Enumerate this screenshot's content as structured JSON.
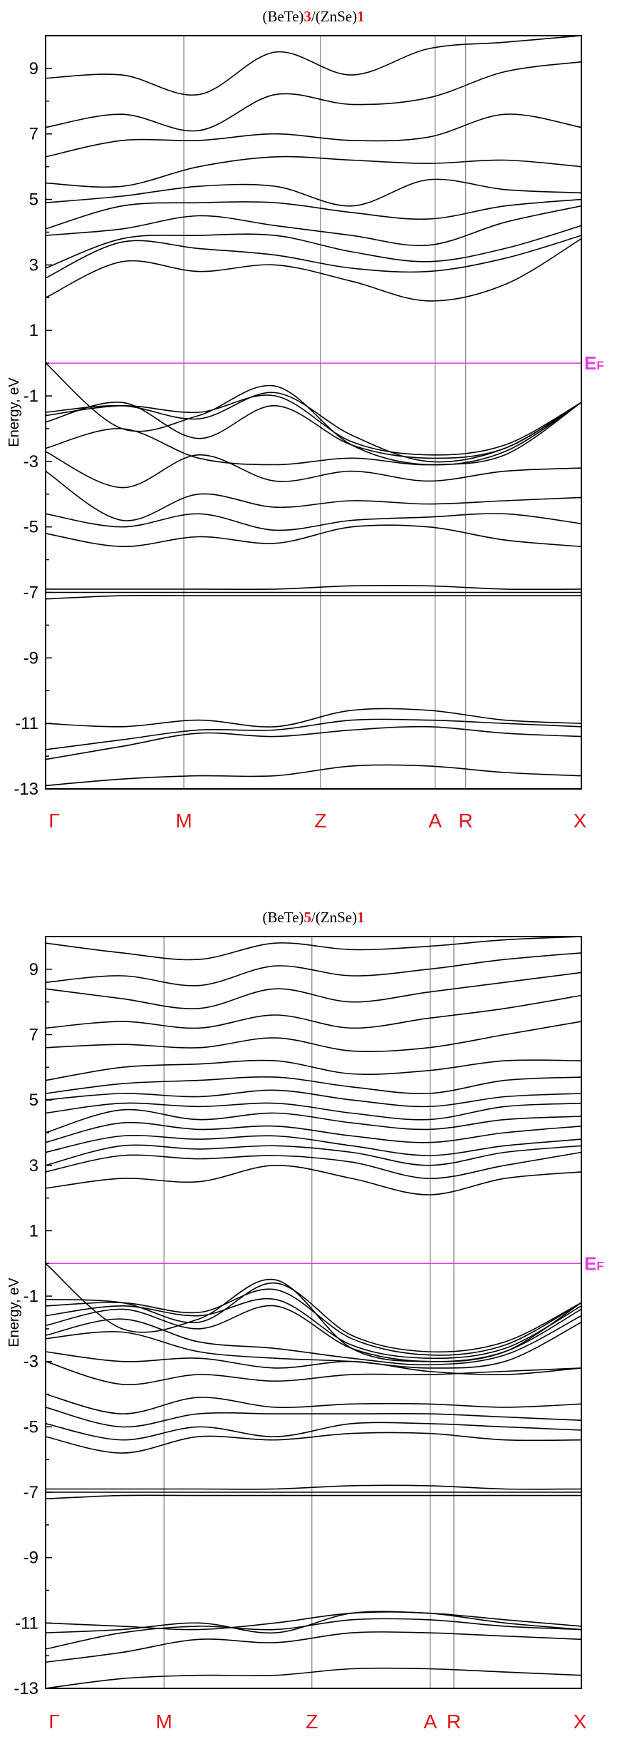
{
  "chart_data": [
    {
      "type": "line",
      "title": {
        "prefix": "(BeTe)",
        "n1": "3",
        "middle": "/(ZnSe)",
        "n2": "1"
      },
      "ylabel": "Energy, eV",
      "ylim": [
        -13,
        10
      ],
      "yticks": [
        9,
        7,
        5,
        3,
        1,
        -1,
        -3,
        -5,
        -7,
        -9,
        -11,
        -13
      ],
      "ytick_labels": [
        "9",
        "7",
        "5",
        "3",
        "1",
        "-1",
        "-3",
        "-5",
        "-7",
        "-9",
        "-11",
        "-13"
      ],
      "kpoints": [
        {
          "label": "Γ",
          "x": 0
        },
        {
          "label": "M",
          "x": 0.258
        },
        {
          "label": "Z",
          "x": 0.513
        },
        {
          "label": "A",
          "x": 0.727
        },
        {
          "label": "R",
          "x": 0.784
        },
        {
          "label": "X",
          "x": 1.0
        }
      ],
      "fermi_level": {
        "energy": 0,
        "label_main": "E",
        "label_sub": "F"
      },
      "colors": {
        "bands": "#000000",
        "fermi": "#e23de0",
        "kpoint_lines": "#888888",
        "labels": "#e0141a"
      },
      "bands": [
        [
          -12.9,
          -12.7,
          -12.6,
          -12.6,
          -12.3,
          -12.3,
          -12.5,
          -12.6
        ],
        [
          -12.1,
          -11.7,
          -11.3,
          -11.4,
          -11.2,
          -11.1,
          -11.3,
          -11.4
        ],
        [
          -11.8,
          -11.5,
          -11.2,
          -11.2,
          -10.9,
          -10.9,
          -11.0,
          -11.1
        ],
        [
          -11.0,
          -11.1,
          -10.9,
          -11.1,
          -10.6,
          -10.6,
          -10.9,
          -11.0
        ],
        [
          -7.2,
          -7.1,
          -7.1,
          -7.1,
          -7.1,
          -7.1,
          -7.1,
          -7.1
        ],
        [
          -7.0,
          -7.0,
          -7.0,
          -7.0,
          -7.0,
          -7.0,
          -7.0,
          -7.0
        ],
        [
          -6.9,
          -6.9,
          -6.9,
          -6.9,
          -6.8,
          -6.8,
          -6.9,
          -6.9
        ],
        [
          -5.2,
          -5.6,
          -5.3,
          -5.5,
          -5.0,
          -5.0,
          -5.4,
          -5.6
        ],
        [
          -4.6,
          -5.0,
          -4.6,
          -5.1,
          -4.8,
          -4.7,
          -4.6,
          -4.9
        ],
        [
          -3.3,
          -4.8,
          -4.0,
          -4.4,
          -4.2,
          -4.3,
          -4.2,
          -4.1
        ],
        [
          -2.7,
          -3.8,
          -2.8,
          -3.6,
          -3.3,
          -3.6,
          -3.3,
          -3.2
        ],
        [
          -2.6,
          -2.0,
          -2.9,
          -3.1,
          -2.9,
          -3.1,
          -2.8,
          -1.2
        ],
        [
          -1.8,
          -1.2,
          -2.3,
          -1.3,
          -2.5,
          -2.9,
          -2.6,
          -1.2
        ],
        [
          -1.6,
          -1.3,
          -1.5,
          -1.0,
          -2.4,
          -2.8,
          -2.5,
          -1.2
        ],
        [
          -1.5,
          -1.3,
          -1.7,
          -0.9,
          -2.2,
          -3.0,
          -2.6,
          -1.2
        ],
        [
          0.0,
          -2.0,
          -1.6,
          -0.7,
          -2.5,
          -3.1,
          -2.7,
          -1.2
        ],
        [
          2.0,
          3.1,
          2.8,
          3.0,
          2.5,
          1.9,
          2.4,
          3.8
        ],
        [
          2.6,
          3.7,
          3.5,
          3.3,
          2.9,
          2.8,
          3.2,
          3.9
        ],
        [
          2.9,
          3.8,
          3.9,
          3.9,
          3.4,
          3.1,
          3.5,
          4.2
        ],
        [
          3.9,
          4.1,
          4.5,
          4.2,
          3.9,
          3.6,
          4.3,
          4.8
        ],
        [
          4.1,
          4.8,
          4.9,
          4.9,
          4.6,
          4.4,
          4.8,
          5.0
        ],
        [
          4.9,
          5.1,
          5.4,
          5.4,
          4.8,
          5.6,
          5.3,
          5.2
        ],
        [
          5.5,
          5.4,
          6.0,
          6.3,
          6.2,
          6.1,
          6.2,
          6.0
        ],
        [
          6.3,
          6.8,
          6.8,
          7.0,
          6.8,
          6.9,
          7.6,
          7.2
        ],
        [
          7.2,
          7.6,
          7.1,
          8.2,
          7.9,
          8.1,
          8.9,
          9.2
        ],
        [
          8.7,
          8.8,
          8.2,
          9.5,
          8.8,
          9.6,
          9.8,
          10.0
        ]
      ]
    },
    {
      "type": "line",
      "title": {
        "prefix": "(BeTe)",
        "n1": "5",
        "middle": "/(ZnSe)",
        "n2": "1"
      },
      "ylabel": "Energy, eV",
      "ylim": [
        -13,
        10
      ],
      "yticks": [
        9,
        7,
        5,
        3,
        1,
        -1,
        -3,
        -5,
        -7,
        -9,
        -11,
        -13
      ],
      "ytick_labels": [
        "9",
        "7",
        "5",
        "3",
        "1",
        "-1",
        "-3",
        "-5",
        "-7",
        "-9",
        "-11",
        "-13"
      ],
      "kpoints": [
        {
          "label": "Γ",
          "x": 0
        },
        {
          "label": "M",
          "x": 0.221
        },
        {
          "label": "Z",
          "x": 0.497
        },
        {
          "label": "A",
          "x": 0.718
        },
        {
          "label": "R",
          "x": 0.762
        },
        {
          "label": "X",
          "x": 1.0
        }
      ],
      "fermi_level": {
        "energy": 0,
        "label_main": "E",
        "label_sub": "F"
      },
      "colors": {
        "bands": "#000000",
        "fermi": "#e23de0",
        "kpoint_lines": "#888888",
        "labels": "#e0141a"
      },
      "bands": [
        [
          -13.0,
          -12.7,
          -12.6,
          -12.6,
          -12.4,
          -12.4,
          -12.5,
          -12.6
        ],
        [
          -12.2,
          -11.9,
          -11.5,
          -11.6,
          -11.3,
          -11.3,
          -11.4,
          -11.5
        ],
        [
          -11.8,
          -11.3,
          -11.1,
          -11.2,
          -10.9,
          -10.9,
          -11.1,
          -11.2
        ],
        [
          -11.3,
          -11.2,
          -11.0,
          -11.3,
          -10.7,
          -10.7,
          -10.9,
          -11.1
        ],
        [
          -11.0,
          -11.1,
          -11.2,
          -11.0,
          -10.7,
          -10.7,
          -11.0,
          -11.2
        ],
        [
          -7.2,
          -7.1,
          -7.1,
          -7.1,
          -7.1,
          -7.1,
          -7.1,
          -7.1
        ],
        [
          -7.0,
          -7.0,
          -7.0,
          -7.0,
          -7.0,
          -7.0,
          -7.0,
          -7.0
        ],
        [
          -6.9,
          -6.9,
          -6.9,
          -6.9,
          -6.8,
          -6.8,
          -6.9,
          -6.9
        ],
        [
          -5.3,
          -5.8,
          -5.3,
          -5.4,
          -5.2,
          -5.2,
          -5.4,
          -5.4
        ],
        [
          -4.9,
          -5.4,
          -5.0,
          -5.3,
          -4.9,
          -4.9,
          -5.0,
          -5.1
        ],
        [
          -4.4,
          -5.0,
          -4.6,
          -4.6,
          -4.6,
          -4.6,
          -4.7,
          -4.8
        ],
        [
          -4.0,
          -4.6,
          -4.1,
          -4.4,
          -4.3,
          -4.3,
          -4.4,
          -4.3
        ],
        [
          -3.0,
          -3.7,
          -3.4,
          -3.6,
          -3.4,
          -3.4,
          -3.3,
          -3.2
        ],
        [
          -2.7,
          -3.0,
          -2.9,
          -3.2,
          -3.0,
          -3.3,
          -3.4,
          -3.2
        ],
        [
          -2.3,
          -2.1,
          -2.7,
          -2.9,
          -3.0,
          -3.2,
          -3.0,
          -1.8
        ],
        [
          -2.2,
          -1.7,
          -2.4,
          -2.6,
          -2.9,
          -3.1,
          -2.8,
          -1.6
        ],
        [
          -1.9,
          -1.4,
          -2.0,
          -1.3,
          -2.6,
          -3.0,
          -2.7,
          -1.4
        ],
        [
          -1.6,
          -1.3,
          -1.6,
          -1.1,
          -2.5,
          -2.9,
          -2.6,
          -1.3
        ],
        [
          -1.3,
          -1.2,
          -1.5,
          -0.8,
          -2.3,
          -2.8,
          -2.5,
          -1.2
        ],
        [
          -1.1,
          -1.2,
          -1.8,
          -0.6,
          -2.2,
          -2.7,
          -2.4,
          -1.2
        ],
        [
          0.0,
          -2.0,
          -1.7,
          -0.5,
          -2.6,
          -3.0,
          -2.7,
          -1.2
        ],
        [
          2.3,
          2.6,
          2.5,
          3.0,
          2.6,
          2.1,
          2.6,
          2.8
        ],
        [
          2.8,
          3.3,
          3.2,
          3.3,
          3.1,
          2.6,
          3.0,
          3.4
        ],
        [
          3.0,
          3.6,
          3.5,
          3.6,
          3.4,
          3.0,
          3.4,
          3.6
        ],
        [
          3.4,
          3.9,
          3.8,
          3.9,
          3.6,
          3.3,
          3.6,
          3.8
        ],
        [
          3.7,
          4.3,
          4.1,
          4.2,
          3.9,
          3.7,
          4.0,
          4.2
        ],
        [
          4.0,
          4.7,
          4.4,
          4.6,
          4.3,
          4.1,
          4.4,
          4.5
        ],
        [
          4.6,
          4.9,
          4.8,
          4.9,
          4.6,
          4.4,
          4.8,
          4.9
        ],
        [
          5.0,
          5.2,
          5.1,
          5.3,
          5.0,
          4.8,
          5.1,
          5.2
        ],
        [
          5.2,
          5.5,
          5.6,
          5.7,
          5.4,
          5.2,
          5.6,
          5.7
        ],
        [
          5.6,
          6.0,
          6.1,
          6.2,
          5.8,
          5.9,
          6.2,
          6.2
        ],
        [
          6.6,
          6.7,
          6.6,
          6.9,
          6.5,
          6.6,
          7.0,
          7.4
        ],
        [
          7.2,
          7.4,
          7.2,
          7.6,
          7.2,
          7.5,
          7.8,
          8.2
        ],
        [
          8.4,
          8.1,
          7.8,
          8.4,
          8.0,
          8.3,
          8.6,
          8.9
        ],
        [
          8.6,
          8.8,
          8.5,
          9.1,
          8.8,
          9.0,
          9.3,
          9.5
        ],
        [
          9.8,
          9.5,
          9.3,
          9.8,
          9.6,
          9.7,
          9.9,
          10.0
        ]
      ]
    }
  ]
}
